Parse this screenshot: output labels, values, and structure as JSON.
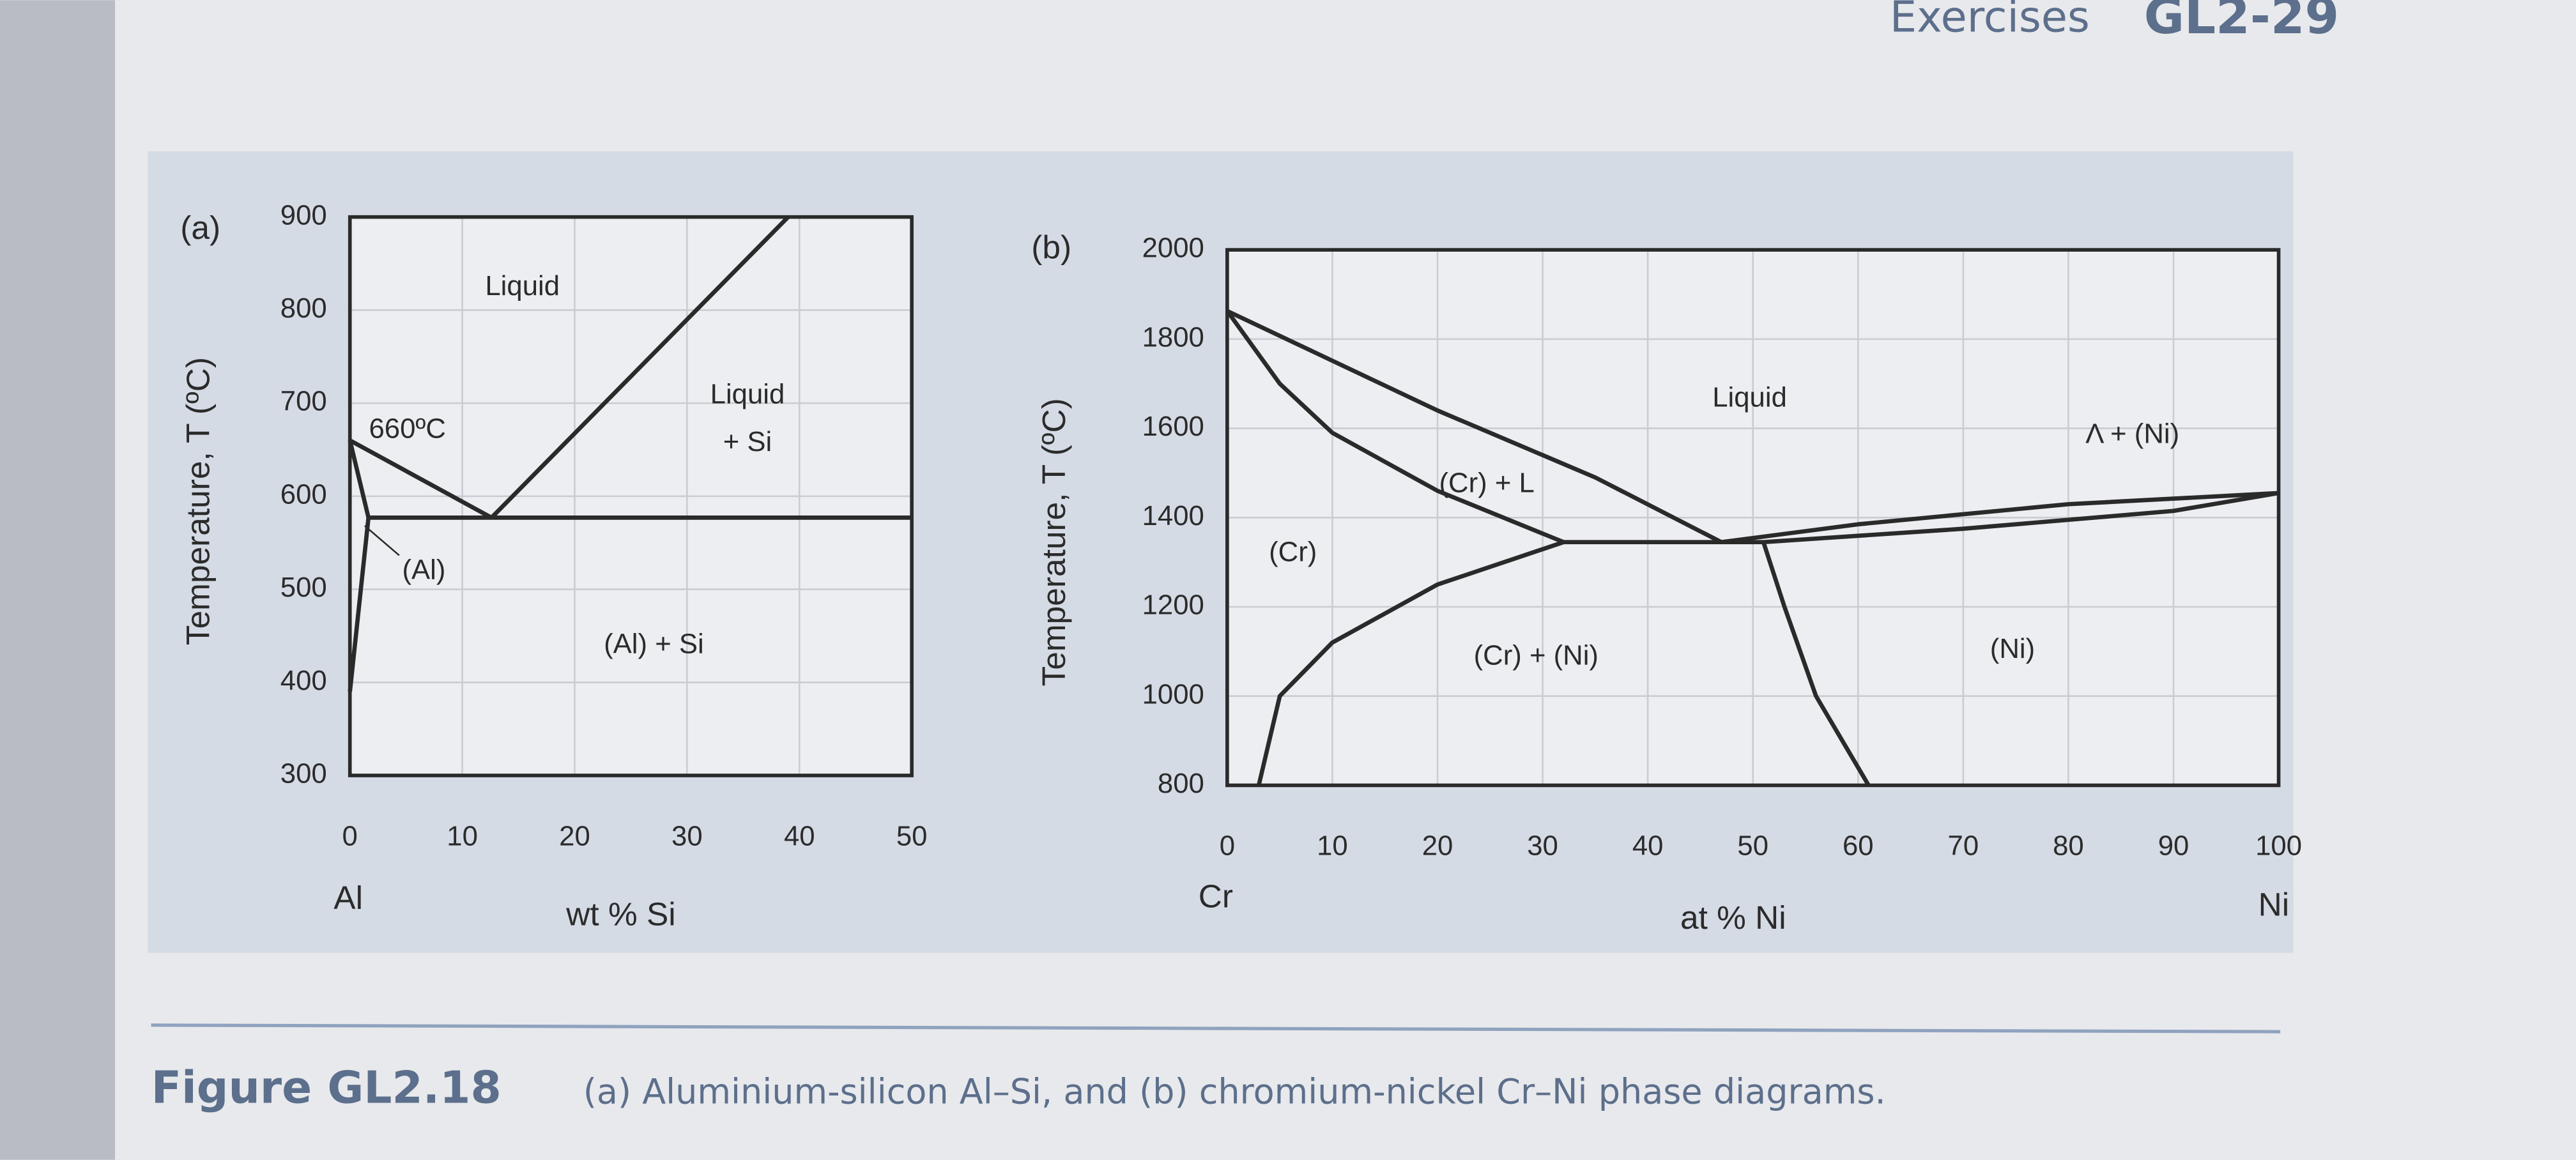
{
  "header": {
    "section": "Exercises",
    "page": "GL2-29"
  },
  "caption": {
    "label": "Figure GL2.18",
    "text": "(a) Aluminium-silicon Al–Si, and (b) chromium-nickel Cr–Ni phase diagrams."
  },
  "chart_data": [
    {
      "type": "line",
      "panel_label": "(a)",
      "x_label": "wt % Si",
      "y_label": "Temperature, T  (ºC)",
      "x_endpoint_labels": [
        "Al"
      ],
      "annotations": [
        "Liquid",
        "Liquid",
        "+ Si",
        "660ºC",
        "(Al)",
        "(Al) + Si"
      ],
      "xlim": [
        0,
        50
      ],
      "ylim": [
        300,
        900
      ],
      "xticks": [
        0,
        10,
        20,
        30,
        40,
        50
      ],
      "yticks": [
        300,
        400,
        500,
        600,
        700,
        800,
        900
      ],
      "grid": true,
      "series": [
        {
          "color": "#2a2a2a",
          "x": [
            0,
            12.6
          ],
          "values": [
            660,
            577
          ]
        },
        {
          "color": "#2a2a2a",
          "x": [
            12.6,
            39
          ],
          "values": [
            577,
            900
          ]
        },
        {
          "color": "#2a2a2a",
          "x": [
            1.65,
            50
          ],
          "values": [
            577,
            577
          ]
        },
        {
          "color": "#2a2a2a",
          "x": [
            0,
            1.65
          ],
          "values": [
            660,
            577
          ]
        },
        {
          "color": "#2a2a2a",
          "x": [
            0,
            1.65
          ],
          "values": [
            390,
            577
          ]
        }
      ]
    },
    {
      "type": "line",
      "panel_label": "(b)",
      "x_label": "at % Ni",
      "y_label": "Temperature, T  (ºC)",
      "x_endpoint_labels": [
        "Cr",
        "Ni"
      ],
      "annotations": [
        "Liquid",
        "Λ + (Ni)",
        "(Cr) + L",
        "(Cr)",
        "(Cr) + (Ni)",
        "(Ni)"
      ],
      "xlim": [
        0,
        100
      ],
      "ylim": [
        800,
        2000
      ],
      "xticks": [
        0,
        10,
        20,
        30,
        40,
        50,
        60,
        70,
        80,
        90,
        100
      ],
      "yticks": [
        800,
        1000,
        1200,
        1400,
        1600,
        1800,
        2000
      ],
      "grid": true,
      "series": [
        {
          "color": "#2a2a2a",
          "x": [
            0,
            20,
            35,
            47
          ],
          "values": [
            1863,
            1640,
            1490,
            1345
          ]
        },
        {
          "color": "#2a2a2a",
          "x": [
            0,
            5,
            10,
            20,
            32
          ],
          "values": [
            1863,
            1700,
            1590,
            1460,
            1345
          ]
        },
        {
          "color": "#2a2a2a",
          "x": [
            32,
            51
          ],
          "values": [
            1345,
            1345
          ]
        },
        {
          "color": "#2a2a2a",
          "x": [
            47,
            60,
            80,
            100
          ],
          "values": [
            1345,
            1385,
            1430,
            1455
          ]
        },
        {
          "color": "#2a2a2a",
          "x": [
            51,
            70,
            90,
            100
          ],
          "values": [
            1345,
            1375,
            1415,
            1455
          ]
        },
        {
          "color": "#2a2a2a",
          "x": [
            32,
            20,
            10,
            5,
            3
          ],
          "values": [
            1345,
            1250,
            1120,
            1000,
            800
          ]
        },
        {
          "color": "#2a2a2a",
          "x": [
            51,
            53,
            56,
            61
          ],
          "values": [
            1345,
            1200,
            1000,
            800
          ]
        }
      ]
    }
  ]
}
